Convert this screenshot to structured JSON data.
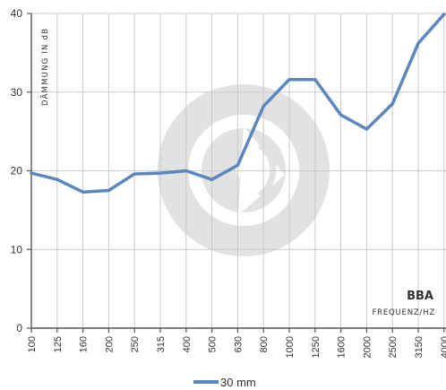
{
  "chart_data": {
    "type": "line",
    "categories": [
      "100",
      "125",
      "160",
      "200",
      "250",
      "315",
      "400",
      "500",
      "630",
      "800",
      "1000",
      "1250",
      "1600",
      "2000",
      "2500",
      "3150",
      "4000"
    ],
    "series": [
      {
        "name": "30 mm",
        "color": "#5b87bd",
        "values": [
          19.7,
          18.9,
          17.3,
          17.5,
          19.6,
          19.7,
          20.0,
          18.9,
          20.7,
          28.2,
          31.6,
          31.6,
          27.1,
          25.3,
          28.5,
          36.2,
          39.9
        ]
      }
    ],
    "ylim": [
      0,
      40
    ],
    "yticks": [
      0,
      10,
      20,
      30,
      40
    ],
    "ylabel": "DÄMMUNG IN dB",
    "xlabel": "FREQUENZ/HZ",
    "grid": true,
    "legend": "bottom-center"
  },
  "brand": "BBA",
  "colors": {
    "line": "#5b87bd",
    "watermark": "#e2e2e2"
  }
}
